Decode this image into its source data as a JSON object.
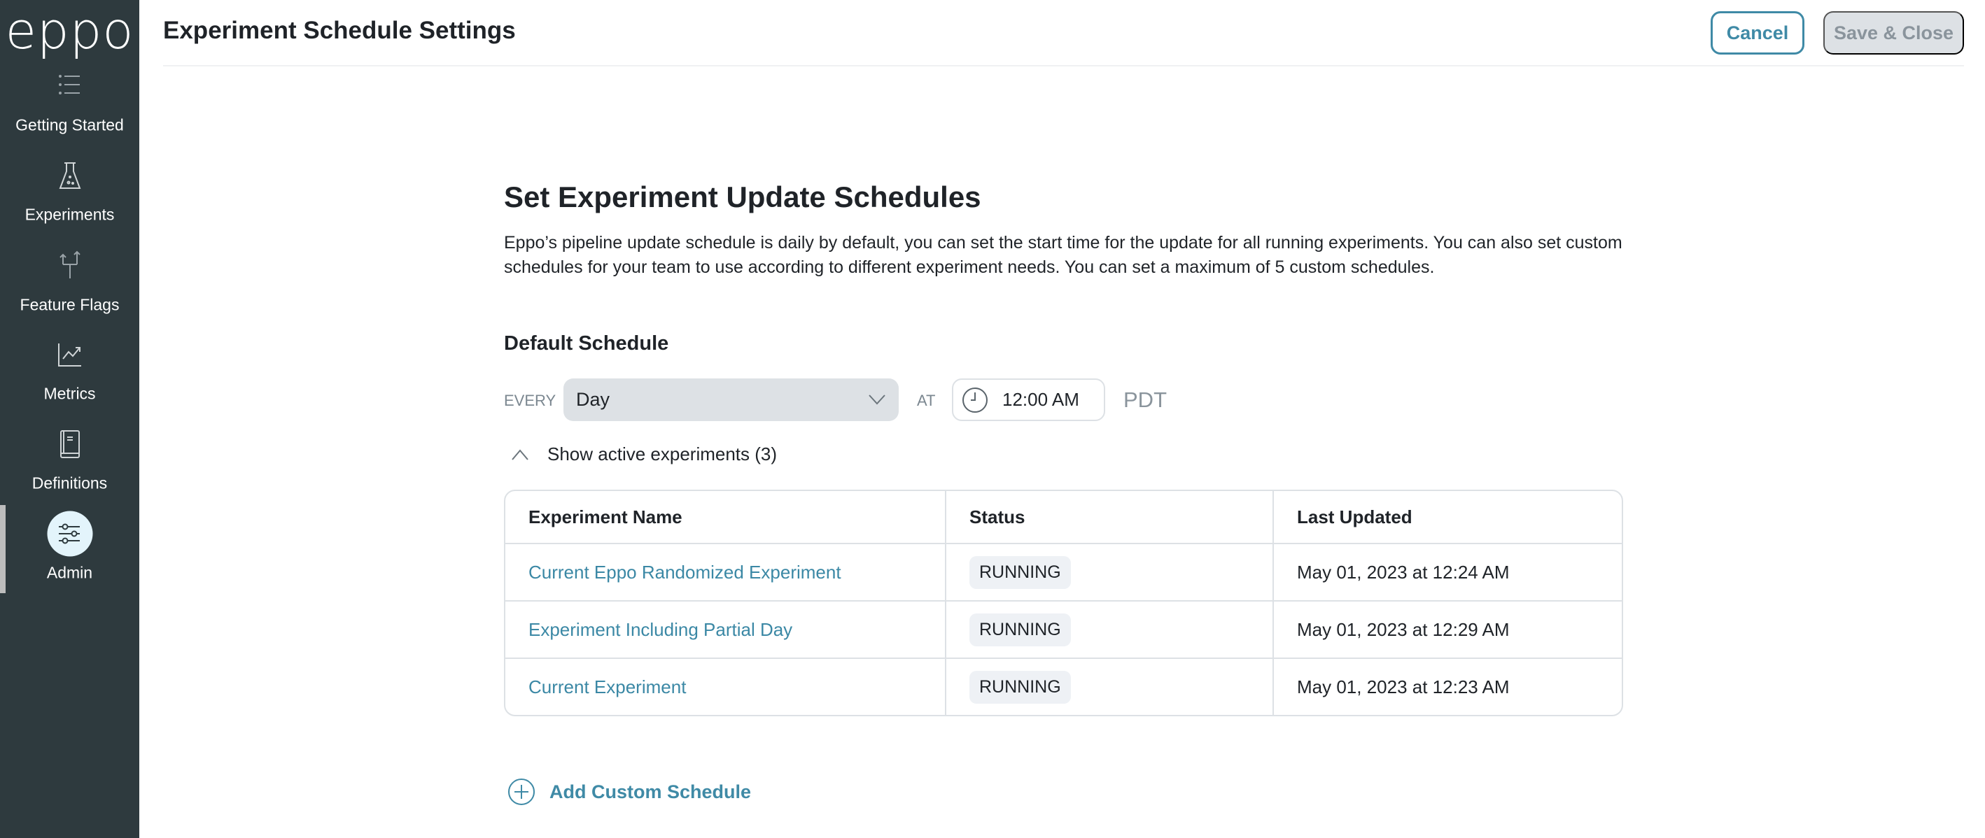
{
  "app": {
    "logo": "eppo",
    "header_title": "Experiment Schedule Settings"
  },
  "sidebar": {
    "items": [
      {
        "label": "Getting Started",
        "icon": "list-icon"
      },
      {
        "label": "Experiments",
        "icon": "flask-icon"
      },
      {
        "label": "Feature Flags",
        "icon": "branch-arrows-icon"
      },
      {
        "label": "Metrics",
        "icon": "line-chart-icon"
      },
      {
        "label": "Definitions",
        "icon": "book-icon"
      },
      {
        "label": "Admin",
        "icon": "sliders-icon",
        "active": true
      }
    ]
  },
  "toolbar": {
    "cancel_label": "Cancel",
    "save_label": "Save & Close"
  },
  "main": {
    "title": "Set Experiment Update Schedules",
    "description": "Eppo’s pipeline update schedule is daily by default, you can set the start time for the update for all running experiments. You can also set custom schedules for your team to use according to different experiment needs. You can set a maximum of 5 custom schedules.",
    "default_schedule": {
      "heading": "Default Schedule",
      "every_label": "EVERY",
      "frequency": "Day",
      "at_label": "AT",
      "time": "12:00 AM",
      "timezone": "PDT",
      "toggle_label": "Show active experiments (3)"
    },
    "table": {
      "columns": [
        "Experiment Name",
        "Status",
        "Last Updated"
      ],
      "rows": [
        {
          "name": "Current Eppo Randomized Experiment",
          "status": "RUNNING",
          "updated": "May 01, 2023 at 12:24 AM"
        },
        {
          "name": "Experiment Including Partial Day",
          "status": "RUNNING",
          "updated": "May 01, 2023 at 12:29 AM"
        },
        {
          "name": "Current Experiment",
          "status": "RUNNING",
          "updated": "May 01, 2023 at 12:23 AM"
        }
      ]
    },
    "add_custom_label": "Add Custom Schedule"
  },
  "colors": {
    "sidebar": "#2e3a3e",
    "accent": "#3f8aa6",
    "link": "#3b88a5",
    "badge": "#eef1f5"
  }
}
